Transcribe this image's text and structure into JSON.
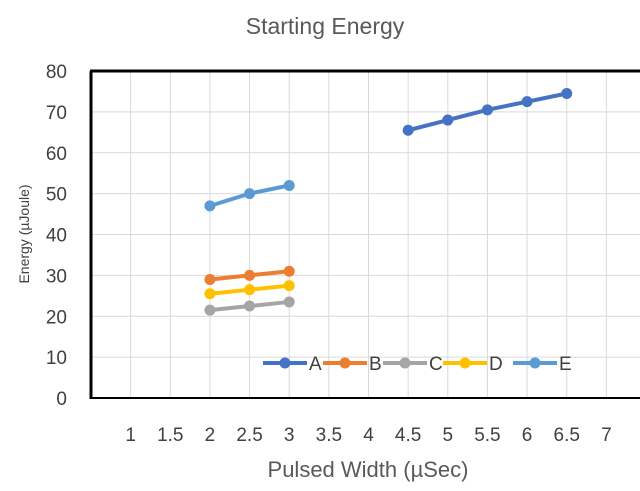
{
  "chart_data": {
    "type": "line",
    "title": "Starting Energy",
    "xlabel": "Pulsed Width (µSec)",
    "ylabel": "Energy (µJoule)",
    "xlim": [
      0.5,
      7.5
    ],
    "ylim": [
      0,
      80
    ],
    "x_ticks": [
      "1",
      "1.5",
      "2",
      "2.5",
      "3",
      "3.5",
      "4",
      "4.5",
      "5",
      "5.5",
      "6",
      "6.5",
      "7"
    ],
    "y_ticks": [
      "0",
      "10",
      "20",
      "30",
      "40",
      "50",
      "60",
      "70",
      "80"
    ],
    "grid": true,
    "legend_position": "bottom-right",
    "series": [
      {
        "name": "A",
        "color": "#4472C4",
        "x": [
          4.5,
          5,
          5.5,
          6,
          6.5
        ],
        "y": [
          65.5,
          68,
          70.5,
          72.5,
          74.5
        ]
      },
      {
        "name": "B",
        "color": "#ED7D31",
        "x": [
          2,
          2.5,
          3
        ],
        "y": [
          29,
          30,
          31
        ]
      },
      {
        "name": "C",
        "color": "#A5A5A5",
        "x": [
          2,
          2.5,
          3
        ],
        "y": [
          21.5,
          22.5,
          23.5
        ]
      },
      {
        "name": "D",
        "color": "#FFC000",
        "x": [
          2,
          2.5,
          3
        ],
        "y": [
          25.5,
          26.5,
          27.5
        ]
      },
      {
        "name": "E",
        "color": "#5B9BD5",
        "x": [
          2,
          2.5,
          3
        ],
        "y": [
          47,
          50,
          52
        ]
      }
    ]
  }
}
